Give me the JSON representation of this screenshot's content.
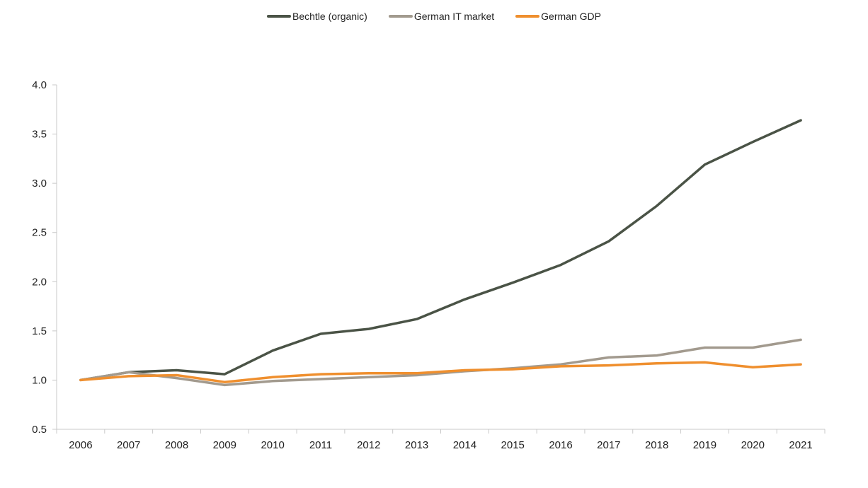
{
  "chart_data": {
    "type": "line",
    "title": "",
    "xlabel": "",
    "ylabel": "",
    "categories": [
      "2006",
      "2007",
      "2008",
      "2009",
      "2010",
      "2011",
      "2012",
      "2013",
      "2014",
      "2015",
      "2016",
      "2017",
      "2018",
      "2019",
      "2020",
      "2021"
    ],
    "ylim": [
      0.5,
      4.0
    ],
    "yticks": [
      "0.5",
      "1.0",
      "1.5",
      "2.0",
      "2.5",
      "3.0",
      "3.5",
      "4.0"
    ],
    "grid": false,
    "legend_position": "top-center",
    "series": [
      {
        "name": "Bechtle (organic)",
        "color": "#4a5346",
        "values": [
          1.0,
          1.08,
          1.1,
          1.06,
          1.3,
          1.47,
          1.52,
          1.62,
          1.82,
          1.99,
          2.17,
          2.41,
          2.77,
          3.19,
          3.42,
          3.64
        ]
      },
      {
        "name": "German IT market",
        "color": "#a29a8e",
        "values": [
          1.0,
          1.08,
          1.02,
          0.95,
          0.99,
          1.01,
          1.03,
          1.05,
          1.09,
          1.12,
          1.16,
          1.23,
          1.25,
          1.33,
          1.33,
          1.41
        ]
      },
      {
        "name": "German GDP",
        "color": "#ef8f2e",
        "values": [
          1.0,
          1.04,
          1.05,
          0.98,
          1.03,
          1.06,
          1.07,
          1.07,
          1.1,
          1.11,
          1.14,
          1.15,
          1.17,
          1.18,
          1.13,
          1.16
        ]
      }
    ]
  }
}
